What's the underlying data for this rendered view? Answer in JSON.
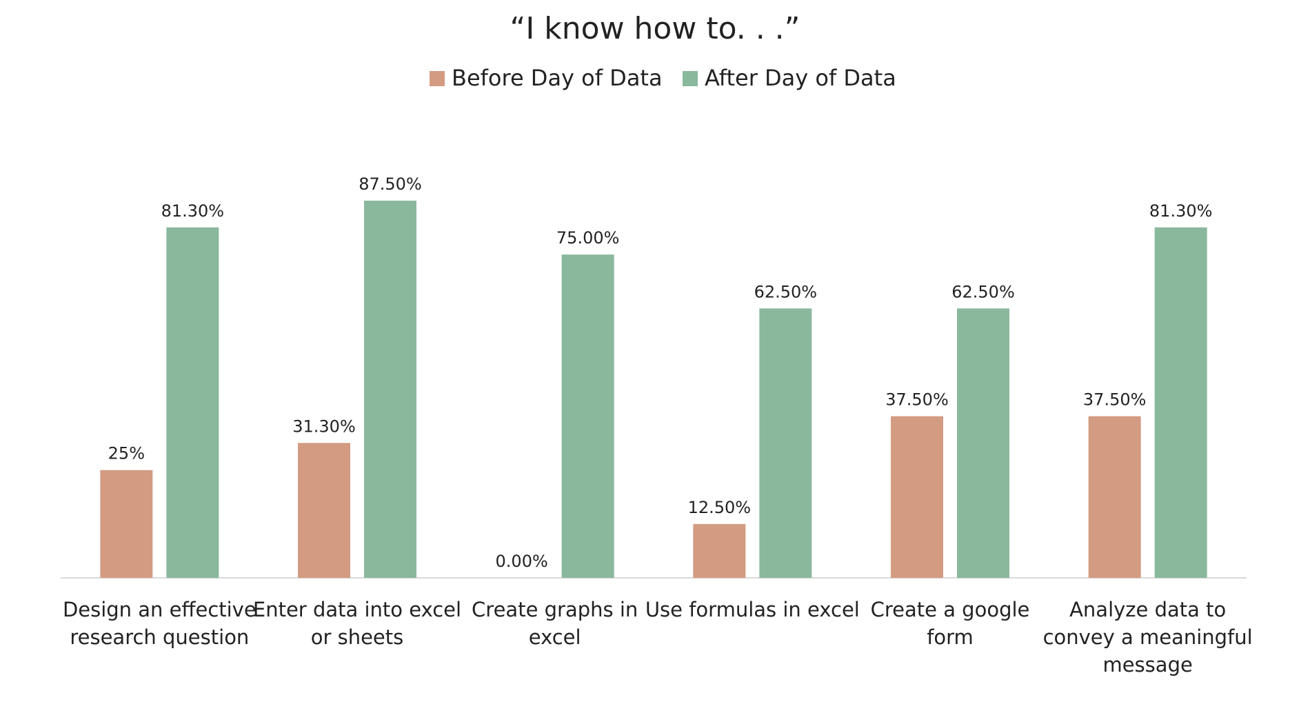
{
  "chart_data": {
    "type": "bar",
    "title": "“I know how to. . .”",
    "categories": [
      [
        "Design an effective",
        "research question"
      ],
      [
        "Enter data into excel",
        "or sheets"
      ],
      [
        "Create graphs in",
        "excel"
      ],
      [
        "Use formulas in excel"
      ],
      [
        "Create a google",
        "form"
      ],
      [
        "Analyze data to",
        "convey a meaningful",
        "message"
      ]
    ],
    "series": [
      {
        "name": "Before Day of Data",
        "color": "#d39b82",
        "values": [
          25,
          31.3,
          0,
          12.5,
          37.5,
          37.5
        ],
        "labels": [
          "25%",
          "31.30%",
          "0.00%",
          "12.50%",
          "37.50%",
          "37.50%"
        ]
      },
      {
        "name": "After Day of Data",
        "color": "#8ab89d",
        "values": [
          81.3,
          87.5,
          75,
          62.5,
          62.5,
          81.3
        ],
        "labels": [
          "81.30%",
          "87.50%",
          "75.00%",
          "62.50%",
          "62.50%",
          "81.30%"
        ]
      }
    ],
    "ylim": [
      0,
      100
    ],
    "legend_position": "top-center",
    "grid": false,
    "axis_line_color": "#d9d9d9"
  }
}
